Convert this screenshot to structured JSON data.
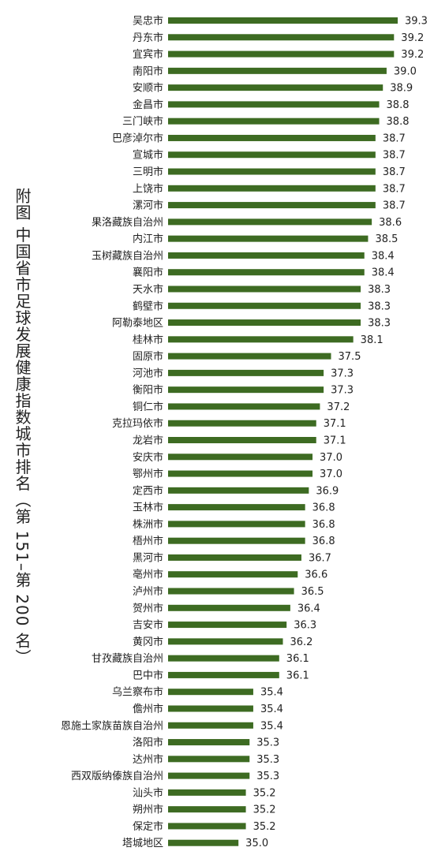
{
  "chart_data": {
    "type": "bar",
    "orientation": "horizontal",
    "title": "附图  中国省市足球发展健康指数城市排名（第 151–第 200 名）",
    "bar_color": "#3d6b22",
    "xlim": [
      0,
      39.3
    ],
    "categories": [
      "吴忠市",
      "丹东市",
      "宜宾市",
      "南阳市",
      "安顺市",
      "金昌市",
      "三门峡市",
      "巴彦淖尔市",
      "宣城市",
      "三明市",
      "上饶市",
      "漯河市",
      "果洛藏族自治州",
      "内江市",
      "玉树藏族自治州",
      "襄阳市",
      "天水市",
      "鹤壁市",
      "阿勒泰地区",
      "桂林市",
      "固原市",
      "河池市",
      "衡阳市",
      "铜仁市",
      "克拉玛依市",
      "龙岩市",
      "安庆市",
      "鄂州市",
      "定西市",
      "玉林市",
      "株洲市",
      "梧州市",
      "黑河市",
      "亳州市",
      "泸州市",
      "贺州市",
      "吉安市",
      "黄冈市",
      "甘孜藏族自治州",
      "巴中市",
      "乌兰察布市",
      "儋州市",
      "恩施土家族苗族自治州",
      "洛阳市",
      "达州市",
      "西双版纳傣族自治州",
      "汕头市",
      "朔州市",
      "保定市",
      "塔城地区"
    ],
    "values": [
      39.3,
      39.2,
      39.2,
      39.0,
      38.9,
      38.8,
      38.8,
      38.7,
      38.7,
      38.7,
      38.7,
      38.7,
      38.6,
      38.5,
      38.4,
      38.4,
      38.3,
      38.3,
      38.3,
      38.1,
      37.5,
      37.3,
      37.3,
      37.2,
      37.1,
      37.1,
      37.0,
      37.0,
      36.9,
      36.8,
      36.8,
      36.8,
      36.7,
      36.6,
      36.5,
      36.4,
      36.3,
      36.2,
      36.1,
      36.1,
      35.4,
      35.4,
      35.4,
      35.3,
      35.3,
      35.3,
      35.2,
      35.2,
      35.2,
      35.0
    ],
    "value_labels": [
      "39.3",
      "39.2",
      "39.2",
      "39.0",
      "38.9",
      "38.8",
      "38.8",
      "38.7",
      "38.7",
      "38.7",
      "38.7",
      "38.7",
      "38.6",
      "38.5",
      "38.4",
      "38.4",
      "38.3",
      "38.3",
      "38.3",
      "38.1",
      "37.5",
      "37.3",
      "37.3",
      "37.2",
      "37.1",
      "37.1",
      "37.0",
      "37.0",
      "36.9",
      "36.8",
      "36.8",
      "36.8",
      "36.7",
      "36.6",
      "36.5",
      "36.4",
      "36.3",
      "36.2",
      "36.1",
      "36.1",
      "35.4",
      "35.4",
      "35.4",
      "35.3",
      "35.3",
      "35.3",
      "35.2",
      "35.2",
      "35.2",
      "35.0"
    ]
  }
}
